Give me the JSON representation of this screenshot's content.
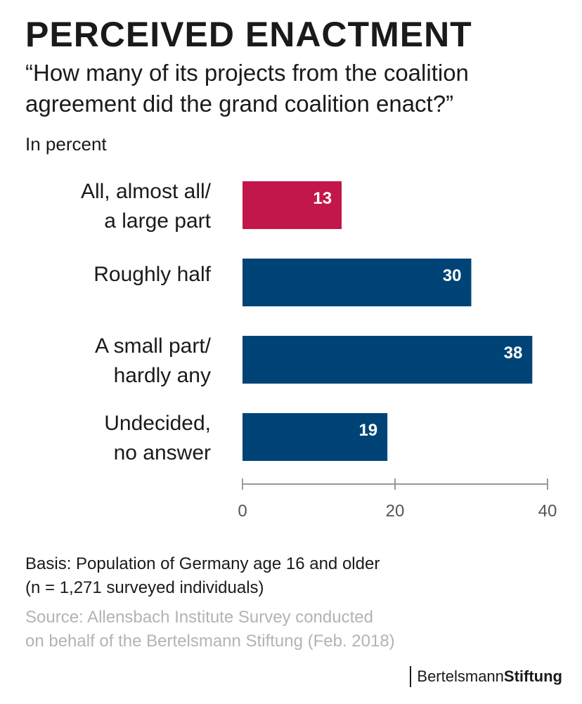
{
  "title": "PERCEIVED ENACTMENT",
  "subtitle": "“How many of its projects from the coalition agreement did the grand coalition enact?”",
  "unit_label": "In percent",
  "notes": {
    "basis_line1": "Basis: Population of Germany age 16 and older",
    "basis_line2": "(n = 1,271 surveyed individuals)",
    "source_line1": "Source: Allensbach Institute Survey conducted",
    "source_line2": "on behalf of the Bertelsmann Stiftung (Feb. 2018)"
  },
  "brand": {
    "part1": "Bertelsmann",
    "part2": "Stiftung"
  },
  "colors": {
    "highlight": "#C2174A",
    "primary": "#004477",
    "axis": "#999999"
  },
  "chart_data": {
    "type": "bar",
    "orientation": "horizontal",
    "categories": [
      [
        "All, almost all/",
        "a large part"
      ],
      [
        "Roughly half"
      ],
      [
        "A small part/",
        "hardly any"
      ],
      [
        "Undecided,",
        "no answer"
      ]
    ],
    "values": [
      13,
      30,
      38,
      19
    ],
    "data_labels": [
      "13",
      "30",
      "38",
      "19"
    ],
    "bar_colors": [
      "#C2174A",
      "#004477",
      "#004477",
      "#004477"
    ],
    "xlim": [
      0,
      40
    ],
    "xticks": [
      0,
      20,
      40
    ],
    "grid": false,
    "legend": "none"
  }
}
